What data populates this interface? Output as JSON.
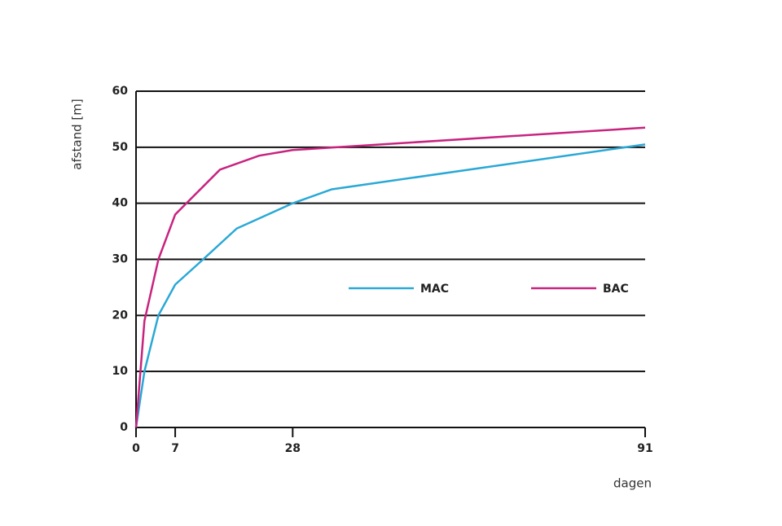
{
  "chart_data": {
    "type": "line",
    "y_label": "afstand [m]",
    "x_label": "dagen",
    "xlim": [
      0,
      91
    ],
    "xticks": [
      0,
      7,
      28,
      91
    ],
    "ylim": [
      0,
      60
    ],
    "yticks": [
      0,
      10,
      20,
      30,
      40,
      50,
      60
    ],
    "grid": true,
    "series": [
      {
        "name": "MAC",
        "color": "#2aa8d6",
        "x": [
          0,
          1.5,
          4,
          7,
          12,
          18,
          28,
          35,
          91
        ],
        "values": [
          0,
          10,
          20,
          25.5,
          30,
          35.5,
          40,
          42.5,
          50.5
        ]
      },
      {
        "name": "BAC",
        "color": "#c8237f",
        "x": [
          0,
          1.5,
          4,
          7,
          15,
          22,
          28,
          91
        ],
        "values": [
          0,
          19,
          30,
          38,
          46,
          48.5,
          49.5,
          53.5
        ]
      }
    ]
  }
}
